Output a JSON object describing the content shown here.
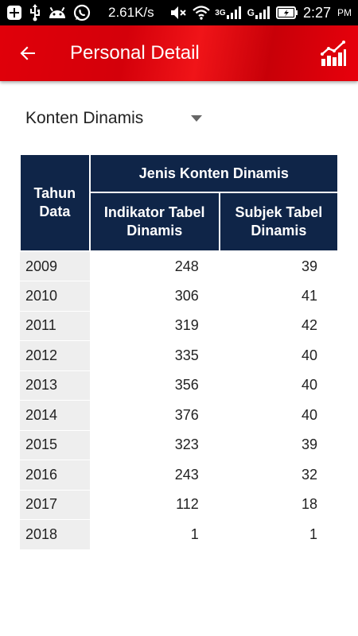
{
  "status_bar": {
    "speed": "2.61K/s",
    "network_label": "3G",
    "time": "2:27",
    "ampm": "PM"
  },
  "app_bar": {
    "title": "Personal Detail",
    "color": "#e0000a"
  },
  "filter": {
    "selected": "Konten Dinamis"
  },
  "table": {
    "header_year": "Tahun Data",
    "header_group": "Jenis Konten Dinamis",
    "header_col1": "Indikator Tabel Dinamis",
    "header_col2": "Subjek Tabel Dinamis",
    "header_color": "#0f2548",
    "rows": [
      {
        "year": "2009",
        "indikator": "248",
        "subjek": "39"
      },
      {
        "year": "2010",
        "indikator": "306",
        "subjek": "41"
      },
      {
        "year": "2011",
        "indikator": "319",
        "subjek": "42"
      },
      {
        "year": "2012",
        "indikator": "335",
        "subjek": "40"
      },
      {
        "year": "2013",
        "indikator": "356",
        "subjek": "40"
      },
      {
        "year": "2014",
        "indikator": "376",
        "subjek": "40"
      },
      {
        "year": "2015",
        "indikator": "323",
        "subjek": "39"
      },
      {
        "year": "2016",
        "indikator": "243",
        "subjek": "32"
      },
      {
        "year": "2017",
        "indikator": "112",
        "subjek": "18"
      },
      {
        "year": "2018",
        "indikator": "1",
        "subjek": "1"
      }
    ]
  }
}
